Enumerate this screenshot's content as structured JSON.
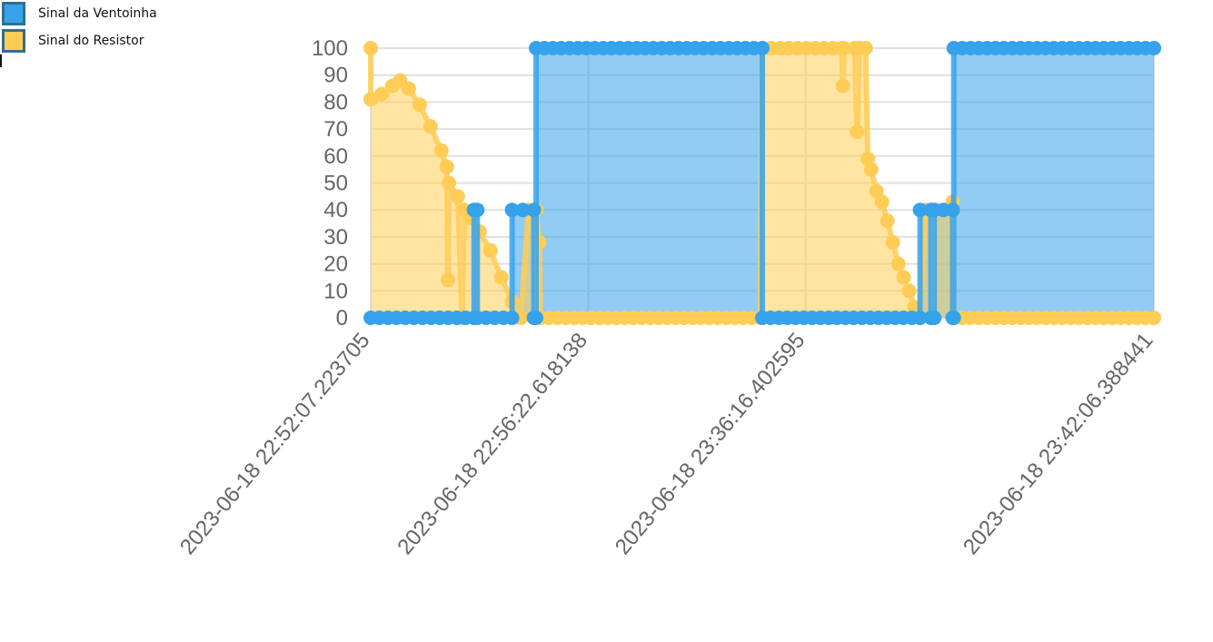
{
  "legend": {
    "items": [
      {
        "label": "Sinal da Ventoinha",
        "color": "#36a2eb"
      },
      {
        "label": "Sinal do Resistor",
        "color": "#ffcd56"
      }
    ]
  },
  "colors": {
    "fan": "#36a2eb",
    "resistor": "#ffcd56",
    "grid": "#e0e0e0"
  },
  "chart_data": {
    "type": "line",
    "title": "",
    "xlabel": "",
    "ylabel": "",
    "ylim": [
      0,
      100
    ],
    "yticks": [
      0,
      10,
      20,
      30,
      40,
      50,
      60,
      70,
      80,
      90,
      100
    ],
    "x_tick_labels": [
      "2023-06-18 22:52:07.223705",
      "2023-06-18 22:56:22.618138",
      "2023-06-18 23:36:16.402595",
      "2023-06-18 23:42:06.388441"
    ],
    "x_tick_positions": [
      0,
      20,
      40,
      72
    ],
    "x_range": [
      0,
      72
    ],
    "grid": true,
    "legend_position": "top-left",
    "series": [
      {
        "name": "Sinal da Ventoinha",
        "color": "#36a2eb",
        "fill": true,
        "points": [
          [
            0,
            0
          ],
          [
            9.5,
            0
          ],
          [
            9.5,
            40
          ],
          [
            9.8,
            40
          ],
          [
            9.8,
            0
          ],
          [
            13,
            0
          ],
          [
            13,
            40
          ],
          [
            15,
            40
          ],
          [
            15,
            0
          ],
          [
            15.2,
            0
          ],
          [
            15.2,
            100
          ],
          [
            36,
            100
          ],
          [
            36,
            0
          ],
          [
            50.5,
            0
          ],
          [
            50.5,
            40
          ],
          [
            51.5,
            40
          ],
          [
            51.5,
            0
          ],
          [
            51.8,
            0
          ],
          [
            51.8,
            40
          ],
          [
            53.5,
            40
          ],
          [
            53.5,
            0
          ],
          [
            53.6,
            0
          ],
          [
            53.6,
            100
          ],
          [
            72,
            100
          ]
        ]
      },
      {
        "name": "Sinal do Resistor",
        "color": "#ffcd56",
        "fill": true,
        "points": [
          [
            0,
            100
          ],
          [
            0,
            81
          ],
          [
            1,
            83
          ],
          [
            2,
            86
          ],
          [
            2.7,
            88
          ],
          [
            3.5,
            85
          ],
          [
            4.5,
            79
          ],
          [
            5.5,
            71
          ],
          [
            6.5,
            62
          ],
          [
            7,
            56
          ],
          [
            7.1,
            14
          ],
          [
            7.2,
            50
          ],
          [
            8,
            45
          ],
          [
            8.4,
            0
          ],
          [
            8.6,
            40
          ],
          [
            9.2,
            37
          ],
          [
            10,
            32
          ],
          [
            11,
            25
          ],
          [
            12,
            15
          ],
          [
            13,
            6
          ],
          [
            13.8,
            0
          ],
          [
            14.5,
            40
          ],
          [
            15.2,
            40
          ],
          [
            15.5,
            28
          ],
          [
            15.6,
            0
          ],
          [
            35.8,
            0
          ],
          [
            36,
            100
          ],
          [
            43.3,
            100
          ],
          [
            43.4,
            86
          ],
          [
            43.5,
            100
          ],
          [
            44.5,
            100
          ],
          [
            44.7,
            69
          ],
          [
            44.9,
            100
          ],
          [
            45.5,
            100
          ],
          [
            45.7,
            59
          ],
          [
            46,
            55
          ],
          [
            46.5,
            47
          ],
          [
            47,
            43
          ],
          [
            47.5,
            36
          ],
          [
            48,
            28
          ],
          [
            48.5,
            20
          ],
          [
            49,
            15
          ],
          [
            49.5,
            10
          ],
          [
            50,
            4
          ],
          [
            50.5,
            0
          ],
          [
            51,
            40
          ],
          [
            53,
            40
          ],
          [
            53.5,
            43
          ],
          [
            53.6,
            0
          ],
          [
            72,
            0
          ]
        ]
      }
    ]
  }
}
